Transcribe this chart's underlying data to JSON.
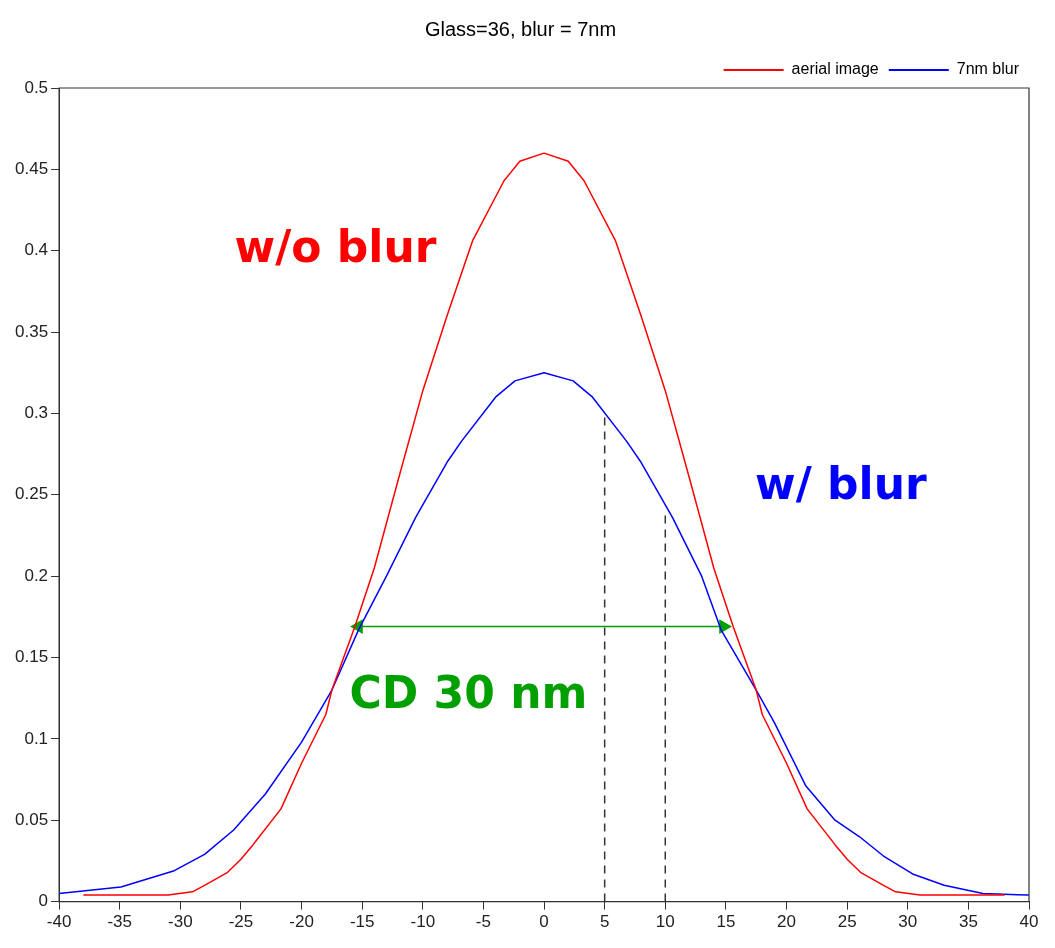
{
  "chart_data": {
    "type": "line",
    "title": "Glass=36, blur = 7nm",
    "xlim": [
      -40,
      40
    ],
    "xticks": [
      -40,
      -35,
      -30,
      -25,
      -20,
      -15,
      -10,
      -5,
      0,
      5,
      10,
      15,
      20,
      25,
      30,
      35,
      40
    ],
    "ylim": [
      0,
      0.5
    ],
    "yticks": [
      0,
      0.05,
      0.1,
      0.15,
      0.2,
      0.25,
      0.3,
      0.35,
      0.4,
      0.45,
      0.5
    ],
    "grid": false,
    "legend": "top right",
    "marker": "none",
    "line_style": "solid",
    "series": [
      {
        "name": "aerial image",
        "color": "#ff0000",
        "x": [
          -38,
          -34,
          -31,
          -29,
          -28,
          -26.1,
          -25,
          -24,
          -21.7,
          -20,
          -18,
          -17.5,
          -15.6,
          -14,
          -12,
          -10,
          -8,
          -5.9,
          -3.3,
          -2,
          0,
          2,
          3.3,
          5.9,
          8,
          10,
          12,
          14,
          15.6,
          17.5,
          18,
          20,
          21.7,
          24,
          25,
          26.1,
          28,
          29,
          31,
          34,
          38
        ],
        "values": [
          0.004,
          0.004,
          0.004,
          0.006,
          0.01,
          0.018,
          0.026,
          0.035,
          0.057,
          0.085,
          0.115,
          0.13,
          0.169,
          0.205,
          0.26,
          0.314,
          0.36,
          0.406,
          0.443,
          0.455,
          0.46,
          0.455,
          0.443,
          0.406,
          0.36,
          0.314,
          0.26,
          0.205,
          0.169,
          0.13,
          0.115,
          0.085,
          0.057,
          0.035,
          0.026,
          0.018,
          0.01,
          0.006,
          0.004,
          0.004,
          0.004
        ]
      },
      {
        "name": "7nm blur",
        "color": "#0000ff",
        "x": [
          -40,
          -34.9,
          -30.5,
          -28,
          -25.6,
          -23,
          -20,
          -17.5,
          -15.3,
          -13,
          -10.6,
          -8,
          -6.8,
          -4,
          -2.4,
          0,
          2.4,
          4,
          6.8,
          8,
          10.6,
          13,
          14.6,
          17.5,
          19,
          21.6,
          24,
          26,
          28,
          30.4,
          33,
          36.2,
          40
        ],
        "values": [
          0.005,
          0.009,
          0.019,
          0.029,
          0.044,
          0.066,
          0.098,
          0.13,
          0.167,
          0.2,
          0.236,
          0.27,
          0.283,
          0.31,
          0.32,
          0.325,
          0.32,
          0.31,
          0.283,
          0.27,
          0.236,
          0.2,
          0.167,
          0.13,
          0.11,
          0.071,
          0.05,
          0.04,
          0.028,
          0.017,
          0.01,
          0.005,
          0.004
        ]
      },
      {
        "color": "#00a000",
        "x": [
          -15.3,
          14.8
        ],
        "values": [
          0.169,
          0.169
        ],
        "marker": "triangle"
      },
      {
        "color": "#333333",
        "x": [
          5,
          5
        ],
        "values": [
          0,
          0.3
        ],
        "line_style": "dashed"
      },
      {
        "color": "#333333",
        "x": [
          10,
          10
        ],
        "values": [
          0,
          0.24
        ],
        "line_style": "dashed"
      }
    ],
    "annotations": [
      "w/o blur",
      "w/ blur",
      "CD 30 nm"
    ]
  }
}
